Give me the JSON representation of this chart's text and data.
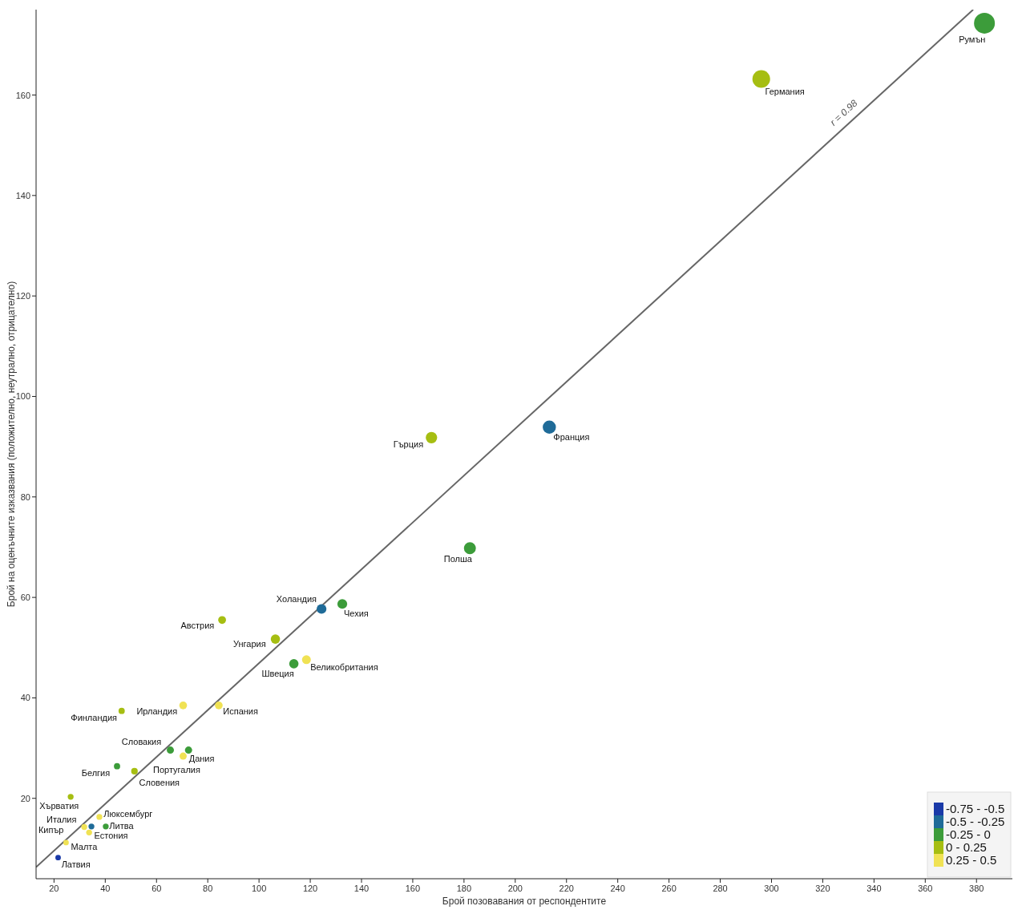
{
  "chart_data": {
    "type": "bubble",
    "xlabel": "Брой позовавания от респондентите",
    "ylabel": "Брой на оценъчните изказвания (положително, неутрално, отрицателно)",
    "xlim": [
      13,
      394
    ],
    "ylim": [
      4,
      177
    ],
    "xticks": [
      20,
      40,
      60,
      80,
      100,
      120,
      140,
      160,
      180,
      200,
      220,
      240,
      260,
      280,
      300,
      320,
      340,
      360,
      380
    ],
    "yticks": [
      20,
      40,
      60,
      80,
      100,
      120,
      140,
      160
    ],
    "grid": false,
    "legend": "bottom right",
    "marker": "circle",
    "series": [
      {
        "name": "-0.75 - -0.5",
        "color": "#1a3aa8",
        "x": [
          21.6
        ],
        "values": [
          8.2
        ],
        "sizes": [
          0.07
        ]
      },
      {
        "name": "-0.5 - -0.25",
        "color": "#1f6b98",
        "x": [
          213.3,
          124.4,
          34.6
        ],
        "values": [
          93.9,
          57.7,
          14.4
        ],
        "sizes": [
          0.4,
          0.22,
          0.08
        ]
      },
      {
        "name": "-0.25 - 0",
        "color": "#3c9c3a",
        "x": [
          383.1,
          182.3,
          132.5,
          113.6,
          65.4,
          72.5,
          44.6,
          40.2
        ],
        "values": [
          174.3,
          69.8,
          58.7,
          46.8,
          29.6,
          29.6,
          26.4,
          14.4
        ],
        "sizes": [
          1,
          0.33,
          0.22,
          0.2,
          0.12,
          0.12,
          0.09,
          0.08
        ]
      },
      {
        "name": "0 - 0.25",
        "color": "#a6be12",
        "x": [
          296,
          167.3,
          85.6,
          106.4,
          46.4,
          51.4,
          26.5
        ],
        "values": [
          163.2,
          91.8,
          55.5,
          51.7,
          37.4,
          25.4,
          20.3
        ],
        "sizes": [
          0.72,
          0.3,
          0.14,
          0.2,
          0.09,
          0.1,
          0.08
        ]
      },
      {
        "name": "0.25 - 0.5",
        "color": "#f0e254",
        "x": [
          118.5,
          70.4,
          84.3,
          70.4,
          37.7,
          31.8,
          33.7,
          24.7
        ],
        "values": [
          47.6,
          38.5,
          38.5,
          28.4,
          16.3,
          14.3,
          13.2,
          11.2
        ],
        "sizes": [
          0.18,
          0.14,
          0.14,
          0.12,
          0.08,
          0.08,
          0.08,
          0.07
        ]
      },
      {
        "type": "line",
        "color": "#666666",
        "line_style": "solid",
        "marker": "none",
        "x": [
          13,
          378.7
        ],
        "values": [
          6.3,
          177
        ]
      }
    ],
    "annotations": [
      {
        "text": "Румън",
        "x": 383.1,
        "y": 174.3
      },
      {
        "text": "Германия",
        "x": 296,
        "y": 163.2
      },
      {
        "text": "Гърция",
        "x": 167.3,
        "y": 91.8
      },
      {
        "text": "Франция",
        "x": 213.3,
        "y": 93.9
      },
      {
        "text": "Полша",
        "x": 182.3,
        "y": 69.8
      },
      {
        "text": "Чехия",
        "x": 132.5,
        "y": 58.7
      },
      {
        "text": "Холандия",
        "x": 124.4,
        "y": 57.7
      },
      {
        "text": "Австрия",
        "x": 85.6,
        "y": 55.5
      },
      {
        "text": "Унгария",
        "x": 106.4,
        "y": 51.7
      },
      {
        "text": "Швеция",
        "x": 113.6,
        "y": 46.8
      },
      {
        "text": "Великобритания",
        "x": 118.5,
        "y": 47.6
      },
      {
        "text": "Финландия",
        "x": 46.4,
        "y": 37.4
      },
      {
        "text": "Ирландия",
        "x": 70.4,
        "y": 38.5
      },
      {
        "text": "Испания",
        "x": 84.3,
        "y": 38.5
      },
      {
        "text": "Словакия",
        "x": 65.4,
        "y": 29.6
      },
      {
        "text": "Дания",
        "x": 72.5,
        "y": 29.6
      },
      {
        "text": "Португалия",
        "x": 70.4,
        "y": 28.4
      },
      {
        "text": "Белгия",
        "x": 44.6,
        "y": 26.4
      },
      {
        "text": "Словения",
        "x": 51.4,
        "y": 25.4
      },
      {
        "text": "Хърватия",
        "x": 26.5,
        "y": 20.3
      },
      {
        "text": "Люксембург",
        "x": 37.7,
        "y": 16.3
      },
      {
        "text": "Италия",
        "x": 31.8,
        "y": 14.3
      },
      {
        "text": "Естония",
        "x": 34.6,
        "y": 14.4
      },
      {
        "text": "Литва",
        "x": 40.2,
        "y": 14.4
      },
      {
        "text": "Малта",
        "x": 33.7,
        "y": 13.2
      },
      {
        "text": "Кипър",
        "x": 24.7,
        "y": 11.2
      },
      {
        "text": "Латвия",
        "x": 21.6,
        "y": 8.2
      },
      "r = 0.98"
    ]
  }
}
